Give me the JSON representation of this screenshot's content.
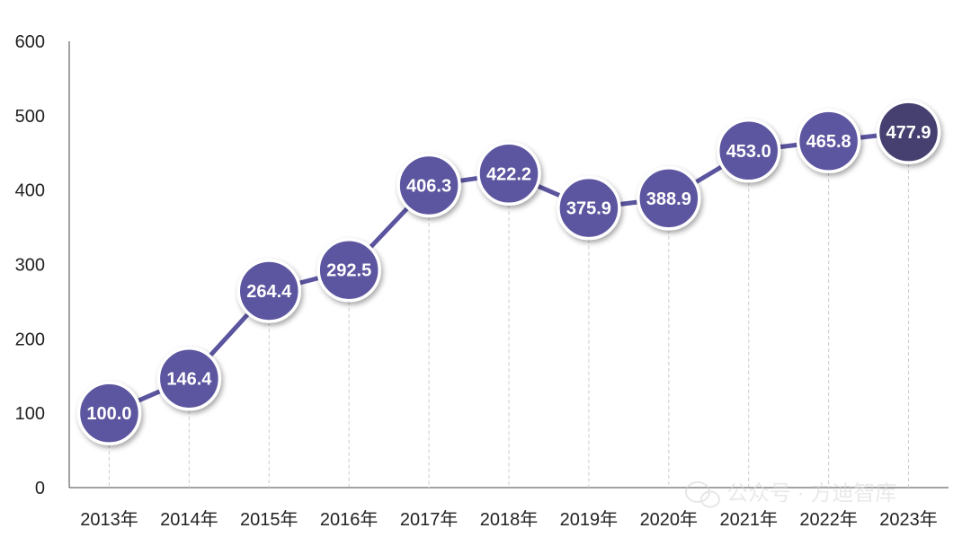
{
  "chart_data": {
    "type": "line",
    "categories": [
      "2013年",
      "2014年",
      "2015年",
      "2016年",
      "2017年",
      "2018年",
      "2019年",
      "2020年",
      "2021年",
      "2022年",
      "2023年"
    ],
    "values": [
      100.0,
      146.4,
      264.4,
      292.5,
      406.3,
      422.2,
      375.9,
      388.9,
      453.0,
      465.8,
      477.9
    ],
    "data_labels": [
      "100.0",
      "146.4",
      "264.4",
      "292.5",
      "406.3",
      "422.2",
      "375.9",
      "388.9",
      "453.0",
      "465.8",
      "477.9"
    ],
    "ylim": [
      0,
      600
    ],
    "yticks": [
      0,
      100,
      200,
      300,
      400,
      500,
      600
    ],
    "title": "",
    "xlabel": "",
    "ylabel": "",
    "grid": false,
    "legend": "none",
    "colors": {
      "line": "#5b559f",
      "marker": "#5b559f",
      "marker_last": "#45406f",
      "marker_border": "#ffffff",
      "axis": "#444444",
      "dropline": "#cccccc"
    }
  },
  "watermark": {
    "text": "公众号 · 方迪智库",
    "icon": "wechat-icon"
  }
}
